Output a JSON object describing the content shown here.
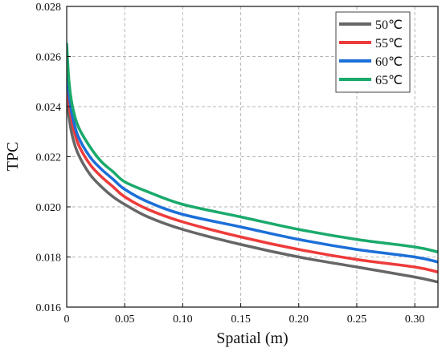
{
  "chart_data": {
    "type": "line",
    "xlabel": "Spatial (m)",
    "ylabel": "TPC",
    "xlim": [
      0,
      0.32
    ],
    "ylim": [
      0.016,
      0.028
    ],
    "xticks": [
      {
        "value": 0,
        "label": "0"
      },
      {
        "value": 0.05,
        "label": "0.05"
      },
      {
        "value": 0.1,
        "label": "0.10"
      },
      {
        "value": 0.15,
        "label": "0.15"
      },
      {
        "value": 0.2,
        "label": "0.20"
      },
      {
        "value": 0.25,
        "label": "0.25"
      },
      {
        "value": 0.3,
        "label": "0.30"
      }
    ],
    "yticks": [
      {
        "value": 0.016,
        "label": "0.016"
      },
      {
        "value": 0.018,
        "label": "0.018"
      },
      {
        "value": 0.02,
        "label": "0.020"
      },
      {
        "value": 0.022,
        "label": "0.022"
      },
      {
        "value": 0.024,
        "label": "0.024"
      },
      {
        "value": 0.026,
        "label": "0.026"
      },
      {
        "value": 0.028,
        "label": "0.028"
      }
    ],
    "grid": true,
    "legend_position": "top-right",
    "x": [
      0,
      0.002,
      0.005,
      0.01,
      0.02,
      0.03,
      0.04,
      0.05,
      0.07,
      0.1,
      0.15,
      0.2,
      0.25,
      0.3,
      0.32
    ],
    "series": [
      {
        "name": "50℃",
        "color": "#666666",
        "values": [
          0.0245,
          0.0236,
          0.0228,
          0.0221,
          0.0213,
          0.0208,
          0.0204,
          0.0201,
          0.0196,
          0.0191,
          0.0185,
          0.018,
          0.0176,
          0.0172,
          0.017
        ]
      },
      {
        "name": "55℃",
        "color": "#ee3b3b",
        "values": [
          0.025,
          0.0241,
          0.0233,
          0.0225,
          0.0217,
          0.0212,
          0.0208,
          0.0204,
          0.0199,
          0.0194,
          0.0188,
          0.0183,
          0.0179,
          0.0176,
          0.0174
        ]
      },
      {
        "name": "60℃",
        "color": "#1c6fd8",
        "values": [
          0.0256,
          0.0245,
          0.0236,
          0.0228,
          0.022,
          0.0215,
          0.0211,
          0.0207,
          0.0202,
          0.0197,
          0.0192,
          0.0187,
          0.0183,
          0.018,
          0.0178
        ]
      },
      {
        "name": "65℃",
        "color": "#1aaa6b",
        "values": [
          0.0265,
          0.025,
          0.024,
          0.0232,
          0.0224,
          0.0218,
          0.0214,
          0.021,
          0.0206,
          0.0201,
          0.0196,
          0.0191,
          0.0187,
          0.0184,
          0.0182
        ]
      }
    ]
  }
}
